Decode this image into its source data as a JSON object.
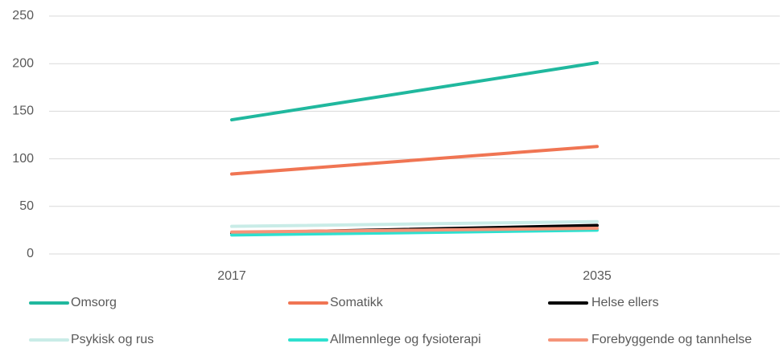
{
  "chart_data": {
    "type": "line",
    "categories": [
      "2017",
      "2035"
    ],
    "series": [
      {
        "name": "Omsorg",
        "color": "#20b89e",
        "values": [
          141,
          201
        ]
      },
      {
        "name": "Somatikk",
        "color": "#f07553",
        "values": [
          84,
          113
        ]
      },
      {
        "name": "Helse ellers",
        "color": "#000000",
        "values": [
          22,
          30
        ]
      },
      {
        "name": "Psykisk og rus",
        "color": "#c9ece7",
        "values": [
          29,
          34
        ]
      },
      {
        "name": "Allmennlege og fysioterapi",
        "color": "#2ee0cf",
        "values": [
          20,
          25
        ]
      },
      {
        "name": "Forebyggende og tannhelse",
        "color": "#f59479",
        "values": [
          23,
          27
        ]
      }
    ],
    "ylim": [
      0,
      250
    ],
    "yticks": [
      0,
      50,
      100,
      150,
      200,
      250
    ],
    "grid": true
  }
}
